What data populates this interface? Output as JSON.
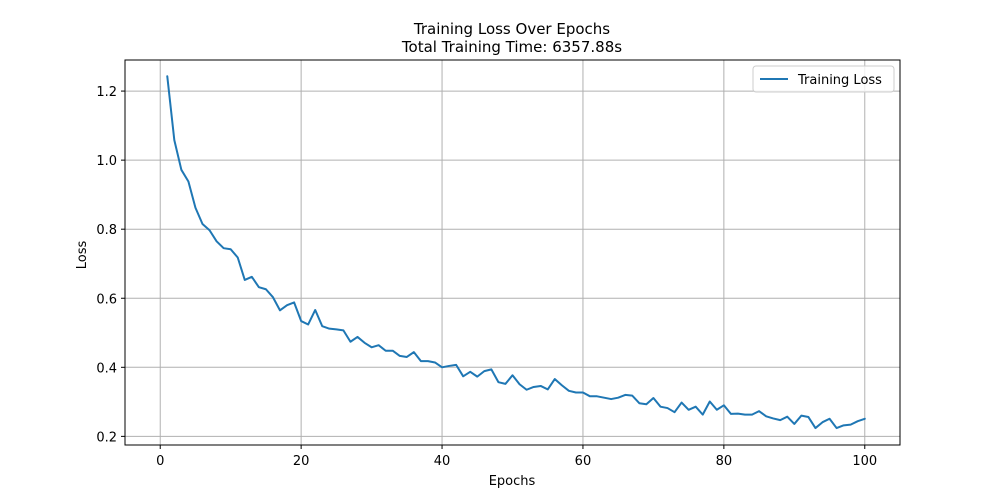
{
  "chart_data": {
    "type": "line",
    "title": "Training Loss Over Epochs",
    "subtitle": "Total Training Time: 6357.88s",
    "xlabel": "Epochs",
    "ylabel": "Loss",
    "xlim": [
      -5,
      105
    ],
    "ylim": [
      0.175,
      1.29
    ],
    "xticks": [
      0,
      20,
      40,
      60,
      80,
      100
    ],
    "yticks": [
      0.2,
      0.4,
      0.6,
      0.8,
      1.0,
      1.2
    ],
    "xtick_labels": [
      "0",
      "20",
      "40",
      "60",
      "80",
      "100"
    ],
    "ytick_labels": [
      "0.2",
      "0.4",
      "0.6",
      "0.8",
      "1.0",
      "1.2"
    ],
    "grid": true,
    "legend_position": "top-right",
    "series": [
      {
        "name": "Training Loss",
        "color": "#1f77b4",
        "x": [
          1,
          2,
          3,
          4,
          5,
          6,
          7,
          8,
          9,
          10,
          11,
          12,
          13,
          14,
          15,
          16,
          17,
          18,
          19,
          20,
          21,
          22,
          23,
          24,
          25,
          26,
          27,
          28,
          29,
          30,
          31,
          32,
          33,
          34,
          35,
          36,
          37,
          38,
          39,
          40,
          41,
          42,
          43,
          44,
          45,
          46,
          47,
          48,
          49,
          50,
          51,
          52,
          53,
          54,
          55,
          56,
          57,
          58,
          59,
          60,
          61,
          62,
          63,
          64,
          65,
          66,
          67,
          68,
          69,
          70,
          71,
          72,
          73,
          74,
          75,
          76,
          77,
          78,
          79,
          80,
          81,
          82,
          83,
          84,
          85,
          86,
          87,
          88,
          89,
          90,
          91,
          92,
          93,
          94,
          95,
          96,
          97,
          98,
          99,
          100
        ],
        "values": [
          1.243,
          1.058,
          0.972,
          0.938,
          0.862,
          0.815,
          0.797,
          0.765,
          0.745,
          0.742,
          0.718,
          0.653,
          0.662,
          0.632,
          0.626,
          0.603,
          0.565,
          0.58,
          0.588,
          0.534,
          0.524,
          0.566,
          0.519,
          0.512,
          0.51,
          0.507,
          0.474,
          0.488,
          0.471,
          0.458,
          0.464,
          0.448,
          0.448,
          0.433,
          0.43,
          0.444,
          0.418,
          0.418,
          0.414,
          0.4,
          0.404,
          0.407,
          0.374,
          0.387,
          0.373,
          0.389,
          0.394,
          0.357,
          0.352,
          0.377,
          0.351,
          0.335,
          0.343,
          0.346,
          0.336,
          0.366,
          0.348,
          0.332,
          0.327,
          0.327,
          0.316,
          0.316,
          0.312,
          0.308,
          0.312,
          0.32,
          0.318,
          0.296,
          0.293,
          0.311,
          0.286,
          0.282,
          0.27,
          0.298,
          0.277,
          0.286,
          0.263,
          0.301,
          0.277,
          0.29,
          0.265,
          0.266,
          0.263,
          0.263,
          0.273,
          0.258,
          0.252,
          0.247,
          0.257,
          0.236,
          0.26,
          0.256,
          0.224,
          0.241,
          0.251,
          0.224,
          0.232,
          0.234,
          0.244,
          0.251
        ]
      }
    ]
  }
}
